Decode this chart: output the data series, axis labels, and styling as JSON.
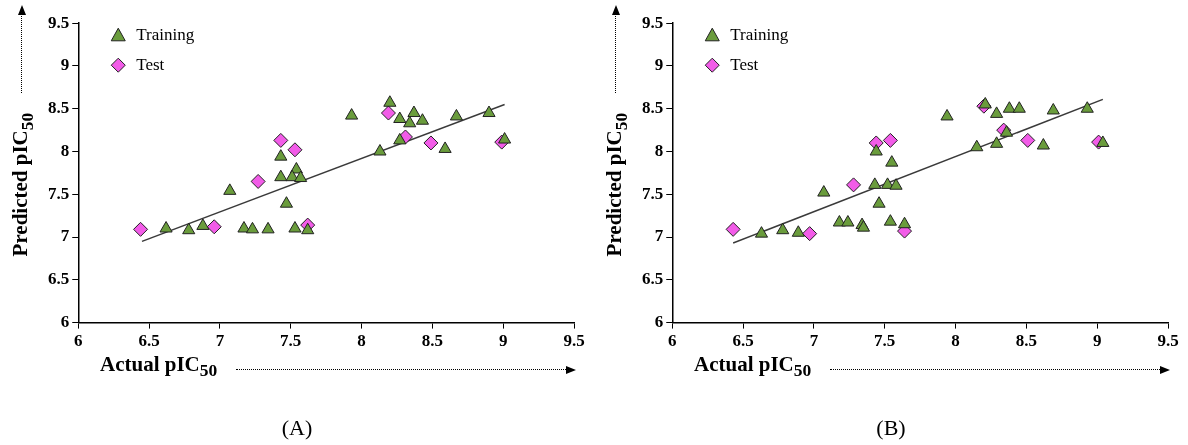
{
  "chart_data": [
    {
      "type": "scatter",
      "xlabel": "Actual pIC$_{50}$",
      "ylabel": "Predicted pIC$_{50}$",
      "annotations": [
        "(A)"
      ],
      "xlim": [
        6,
        9.5
      ],
      "ylim": [
        6,
        9.5
      ],
      "xticks": [
        6,
        6.5,
        7,
        7.5,
        8,
        8.5,
        9,
        9.5
      ],
      "yticks": [
        6,
        6.5,
        7,
        7.5,
        8,
        8.5,
        9,
        9.5
      ],
      "grid": false,
      "legend": "top left",
      "series": [
        {
          "name": "Training",
          "color": "#6a9c3c",
          "marker": "triangle",
          "x": [
            6.62,
            6.78,
            6.88,
            7.07,
            7.17,
            7.23,
            7.34,
            7.43,
            7.43,
            7.47,
            7.54,
            7.51,
            7.57,
            7.53,
            7.62,
            7.93,
            8.2,
            8.27,
            8.37,
            8.34,
            8.43,
            8.27,
            8.13,
            8.59,
            8.67,
            8.9,
            9.01
          ],
          "values": [
            7.1,
            7.08,
            7.13,
            7.54,
            7.1,
            7.09,
            7.09,
            7.94,
            7.7,
            7.39,
            7.79,
            7.7,
            7.69,
            7.1,
            7.08,
            8.42,
            8.57,
            8.38,
            8.45,
            8.33,
            8.36,
            8.13,
            8.0,
            8.03,
            8.41,
            8.45,
            8.14
          ]
        },
        {
          "name": "Test",
          "color": "#f25ce8",
          "marker": "diamond",
          "x": [
            6.44,
            6.96,
            7.27,
            7.43,
            7.53,
            7.62,
            8.19,
            8.31,
            8.49,
            8.99
          ],
          "values": [
            7.09,
            7.12,
            7.65,
            8.13,
            8.02,
            7.14,
            8.45,
            8.17,
            8.1,
            8.11
          ]
        },
        {
          "type": "line",
          "color": "#3a3a3a",
          "marker": "none",
          "x": [
            6.45,
            9.01
          ],
          "values": [
            6.95,
            8.55
          ]
        }
      ]
    },
    {
      "type": "scatter",
      "xlabel": "Actual pIC$_{50}$",
      "ylabel": "Predicted pIC$_{50}$",
      "annotations": [
        "(B)"
      ],
      "xlim": [
        6,
        9.5
      ],
      "ylim": [
        6,
        9.5
      ],
      "xticks": [
        6,
        6.5,
        7,
        7.5,
        8,
        8.5,
        9,
        9.5
      ],
      "yticks": [
        6,
        6.5,
        7,
        7.5,
        8,
        8.5,
        9,
        9.5
      ],
      "grid": false,
      "legend": "top left",
      "series": [
        {
          "name": "Training",
          "color": "#6a9c3c",
          "marker": "triangle",
          "x": [
            6.63,
            6.78,
            6.89,
            7.07,
            7.18,
            7.24,
            7.34,
            7.35,
            7.44,
            7.55,
            7.43,
            7.52,
            7.58,
            7.46,
            7.54,
            7.64,
            7.94,
            8.21,
            8.29,
            8.38,
            8.45,
            8.69,
            8.93,
            8.36,
            8.15,
            8.29,
            8.62,
            9.04
          ],
          "values": [
            7.04,
            7.08,
            7.05,
            7.52,
            7.17,
            7.17,
            7.14,
            7.11,
            8.0,
            7.87,
            7.61,
            7.61,
            7.6,
            7.39,
            7.18,
            7.15,
            8.41,
            8.55,
            8.44,
            8.5,
            8.5,
            8.48,
            8.5,
            8.22,
            8.05,
            8.09,
            8.07,
            8.1
          ]
        },
        {
          "name": "Test",
          "color": "#f25ce8",
          "marker": "diamond",
          "x": [
            6.43,
            6.97,
            7.28,
            7.44,
            7.54,
            7.64,
            8.2,
            8.34,
            8.51,
            9.01
          ],
          "values": [
            7.09,
            7.04,
            7.61,
            8.1,
            8.13,
            7.07,
            8.53,
            8.25,
            8.13,
            8.11
          ]
        },
        {
          "type": "line",
          "color": "#3a3a3a",
          "marker": "none",
          "x": [
            6.43,
            9.04
          ],
          "values": [
            6.93,
            8.61
          ]
        }
      ]
    }
  ]
}
